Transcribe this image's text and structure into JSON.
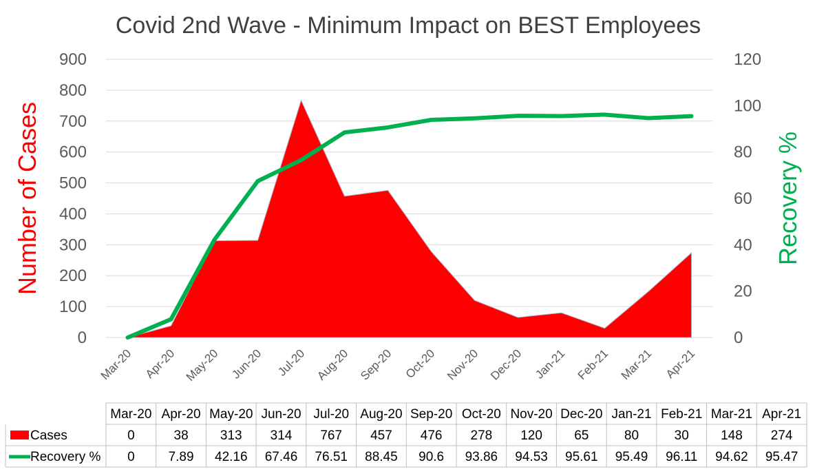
{
  "chart_data": {
    "type": "area",
    "title": "Covid 2nd Wave - Minimum Impact on BEST Employees",
    "categories": [
      "Mar-20",
      "Apr-20",
      "May-20",
      "Jun-20",
      "Jul-20",
      "Aug-20",
      "Sep-20",
      "Oct-20",
      "Nov-20",
      "Dec-20",
      "Jan-21",
      "Feb-21",
      "Mar-21",
      "Apr-21"
    ],
    "series": [
      {
        "name": "Cases",
        "type": "area",
        "axis": "left",
        "color": "#ff0000",
        "values": [
          0,
          38,
          313,
          314,
          767,
          457,
          476,
          278,
          120,
          65,
          80,
          30,
          148,
          274
        ],
        "labels": [
          "0",
          "38",
          "313",
          "314",
          "767",
          "457",
          "476",
          "278",
          "120",
          "65",
          "80",
          "30",
          "148",
          "274"
        ]
      },
      {
        "name": "Recovery %",
        "type": "line",
        "axis": "right",
        "color": "#00b050",
        "values": [
          0,
          7.89,
          42.16,
          67.46,
          76.51,
          88.45,
          90.6,
          93.86,
          94.53,
          95.61,
          95.49,
          96.11,
          94.62,
          95.47
        ],
        "labels": [
          "0",
          "7.89",
          "42.16",
          "67.46",
          "76.51",
          "88.45",
          "90.6",
          "93.86",
          "94.53",
          "95.61",
          "95.49",
          "96.11",
          "94.62",
          "95.47"
        ]
      }
    ],
    "ylabel": "Number of Cases",
    "y2label": "Recovery %",
    "ylim": [
      0,
      900
    ],
    "y2lim": [
      0,
      120
    ],
    "yticks": [
      "0",
      "100",
      "200",
      "300",
      "400",
      "500",
      "600",
      "700",
      "800",
      "900"
    ],
    "y2ticks": [
      "0",
      "20",
      "40",
      "60",
      "80",
      "100",
      "120"
    ],
    "grid": true,
    "legend": "data-table"
  }
}
